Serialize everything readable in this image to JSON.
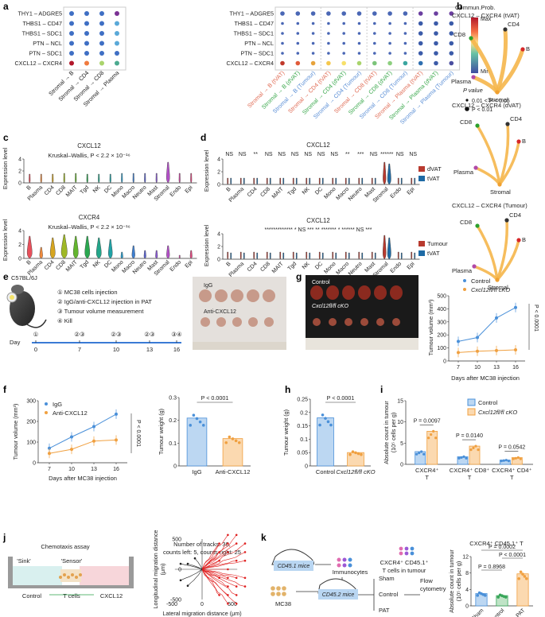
{
  "panels": {
    "a": "a",
    "b": "b",
    "c": "c",
    "d": "d",
    "e": "e",
    "f": "f",
    "g": "g",
    "h": "h",
    "i": "i",
    "j": "j",
    "k": "k"
  },
  "panel_a": {
    "pairs": [
      "THY1 – ADGRE5",
      "THBS1 – CD47",
      "THBS1 – SDC1",
      "PTN – NCL",
      "PTN – SDC1",
      "CXCL12 – CXCR4"
    ],
    "left_x": [
      "Stromal → B",
      "Stromal → CD4",
      "Stromal → CD8",
      "Stromal → Plasma"
    ],
    "right_x": [
      "Stromal → B (tVAT)",
      "Stromal → B (dVAT)",
      "Stromal → B (Tumour)",
      "Stromal → CD4 (tVAT)",
      "Stromal → CD4 (dVAT)",
      "Stromal → CD4 (Tumour)",
      "Stromal → CD8 (tVAT)",
      "Stromal → CD8 (dVAT)",
      "Stromal → CD8 (Tumour)",
      "Stromal → Plasma (tVAT)",
      "Stromal → Plasma (dVAT)",
      "Stromal → Plasma (Tumour)"
    ],
    "colorbar_title": "Commun.Prob.",
    "cb_max": "Max",
    "cb_min": "Min",
    "pvalue_title": "P value",
    "pvalue_1": "0.01 < P < 0.05",
    "pvalue_2": "P < 0.01"
  },
  "panel_b": {
    "titles": [
      "CXCL12 – CXCR4 (tVAT)",
      "CXCL12 – CXCR4 (dVAT)",
      "CXCL12 – CXCR4 (Tumour)"
    ],
    "nodes": {
      "cd8": "CD8",
      "cd4": "CD4",
      "b": "B",
      "plasma": "Plasma",
      "stromal": "Stromal"
    }
  },
  "panel_c": {
    "title1": "CXCL12",
    "stat1": "Kruskal–Wallis, P < 2.2 × 10⁻¹⁶",
    "title2": "CXCR4",
    "stat2": "Kruskal–Wallis, P < 2.2 × 10⁻¹⁶",
    "ylabel": "Expression level",
    "cells": [
      "B",
      "Plasma",
      "CD4",
      "CD8",
      "MAIT",
      "Tgd",
      "NK",
      "DC",
      "Mono",
      "Macro",
      "Neutro",
      "Mast",
      "Stromal",
      "Endo",
      "Epi"
    ]
  },
  "panel_d": {
    "title1": "CXCL12",
    "title2": "CXCL12",
    "sig1": [
      "NS",
      "NS",
      "**",
      "NS",
      "NS",
      "NS",
      "NS",
      "NS",
      "NS",
      "**",
      "***",
      "NS",
      "******",
      "NS",
      "NS"
    ],
    "sig2": [
      "*************",
      "*",
      "NS",
      "***",
      "**",
      "*******",
      "*",
      "******",
      "NS",
      "***"
    ],
    "legend1": [
      "dVAT",
      "tVAT"
    ],
    "legend2": [
      "Tumour",
      "tVAT"
    ],
    "ylabel": "Expression level"
  },
  "panel_e": {
    "strain": "C57BL/6J",
    "steps": [
      "① MC38 cells injection",
      "② IgG/anti-CXCL12 injection in PAT",
      "③ Tumour volume measurement",
      "④ Kill"
    ],
    "day_label": "Day",
    "days": [
      "0",
      "7",
      "10",
      "13",
      "16"
    ],
    "markers": [
      "①",
      "②③",
      "②③",
      "②③",
      "③④"
    ],
    "photo_labels": [
      "IgG",
      "Anti-CXCL12"
    ]
  },
  "panel_g": {
    "photo_labels": [
      "Control",
      "Cxcl12fl/fl cKO"
    ],
    "legend": [
      "Control",
      "Cxcl12fl/fl cKO"
    ],
    "ylabel": "Tumour volume (mm³)",
    "xlabel": "Days after MC38 injection",
    "pval": "P < 0.0001"
  },
  "panel_f": {
    "legend": [
      "IgG",
      "Anti-CXCL12"
    ],
    "ylabel": "Tumour volume (mm³)",
    "xlabel": "Days after MC38 injection",
    "pval": "P < 0.0001",
    "bar_ylabel": "Tumour weight (g)",
    "bar_pval": "P < 0.0001",
    "bar_categories": [
      "IgG",
      "Anti-CXCL12"
    ]
  },
  "panel_h": {
    "ylabel": "Tumour weight (g)",
    "pval": "P < 0.0001",
    "categories": [
      "Control",
      "Cxcl12fl/fl cKO"
    ]
  },
  "panel_i": {
    "ylabel": "Absolute count in tumour (10⁵ cells per g)",
    "legend": [
      "Control",
      "Cxcl12fl/fl cKO"
    ],
    "pvals": [
      "P = 0.0097",
      "P = 0.0140",
      "P = 0.0542"
    ],
    "categories": [
      "CXCR4⁺ T",
      "CXCR4⁺ CD8⁺ T",
      "CXCR4⁺ CD4⁺ T"
    ]
  },
  "panel_j": {
    "title": "Chemotaxis assay",
    "sink": "'Sink'",
    "sensor": "'Sensor'",
    "labels": [
      "Control",
      "T cells",
      "CXCL12"
    ],
    "track_info": "Number of tracks: 30, counts left: 5, counts right: 25",
    "ylabel": "Longitudinal migration distance (μm)",
    "xlabel": "Lateral migration distance (μm)"
  },
  "panel_k": {
    "mice1": "CD45.1 mice",
    "immuno": "Immunocytes",
    "tumour": "MC38",
    "mice2": "CD45.2 mice",
    "groups": [
      "Sham",
      "Control",
      "PAT"
    ],
    "cells_label": "CXCR4⁺ CD45.1⁺ T cells in tumour",
    "flow": "Flow cytometry",
    "chart_title": "CXCR4⁺ CD45.1⁺ T",
    "ylabel": "Absolute count in tumour (10⁵ cells per g)",
    "pvals": [
      "P = 0.0002",
      "P < 0.0001",
      "P = 0.8968"
    ]
  },
  "chart_data": [
    {
      "id": "f-line",
      "type": "line",
      "x": [
        7,
        10,
        13,
        16
      ],
      "xlabel": "Days after MC38 injection",
      "ylabel": "Tumour volume (mm³)",
      "ylim": [
        0,
        300
      ],
      "yticks": [
        0,
        100,
        200,
        300
      ],
      "series": [
        {
          "name": "IgG",
          "values": [
            70,
            125,
            175,
            235
          ],
          "color": "#4a90d9"
        },
        {
          "name": "Anti-CXCL12",
          "values": [
            45,
            65,
            105,
            110
          ],
          "color": "#f0a040"
        }
      ]
    },
    {
      "id": "f-bar",
      "type": "bar",
      "categories": [
        "IgG",
        "Anti-CXCL12"
      ],
      "values": [
        0.21,
        0.12
      ],
      "ylim": [
        0,
        0.3
      ],
      "yticks": [
        0,
        0.1,
        0.2,
        0.3
      ],
      "ylabel": "Tumour weight (g)"
    },
    {
      "id": "g-line",
      "type": "line",
      "x": [
        7,
        10,
        13,
        16
      ],
      "xlabel": "Days after MC38 injection",
      "ylabel": "Tumour volume (mm³)",
      "ylim": [
        0,
        500
      ],
      "yticks": [
        0,
        100,
        200,
        300,
        400,
        500
      ],
      "series": [
        {
          "name": "Control",
          "values": [
            150,
            180,
            330,
            410
          ],
          "color": "#4a90d9"
        },
        {
          "name": "Cxcl12fl/fl cKO",
          "values": [
            65,
            75,
            80,
            85
          ],
          "color": "#f0a040"
        }
      ]
    },
    {
      "id": "h-bar",
      "type": "bar",
      "categories": [
        "Control",
        "Cxcl12fl/fl cKO"
      ],
      "values": [
        0.18,
        0.05
      ],
      "ylim": [
        0,
        0.25
      ],
      "yticks": [
        0,
        0.05,
        0.1,
        0.15,
        0.2,
        0.25
      ],
      "ylabel": "Tumour weight (g)"
    },
    {
      "id": "i-bar",
      "type": "bar",
      "categories": [
        "CXCR4⁺ T",
        "CXCR4⁺ CD8⁺ T",
        "CXCR4⁺ CD4⁺ T"
      ],
      "ylim": [
        0,
        15
      ],
      "yticks": [
        0,
        5,
        10,
        15
      ],
      "series": [
        {
          "name": "Control",
          "values": [
            3.0,
            1.8,
            1.0
          ]
        },
        {
          "name": "Cxcl12fl/fl cKO",
          "values": [
            7.8,
            4.3,
            1.6
          ]
        }
      ]
    },
    {
      "id": "k-bar",
      "type": "bar",
      "categories": [
        "Sham",
        "Control",
        "PAT"
      ],
      "values": [
        3.0,
        2.5,
        7.8
      ],
      "ylim": [
        0,
        12
      ],
      "yticks": [
        0,
        4,
        8,
        12
      ]
    }
  ]
}
